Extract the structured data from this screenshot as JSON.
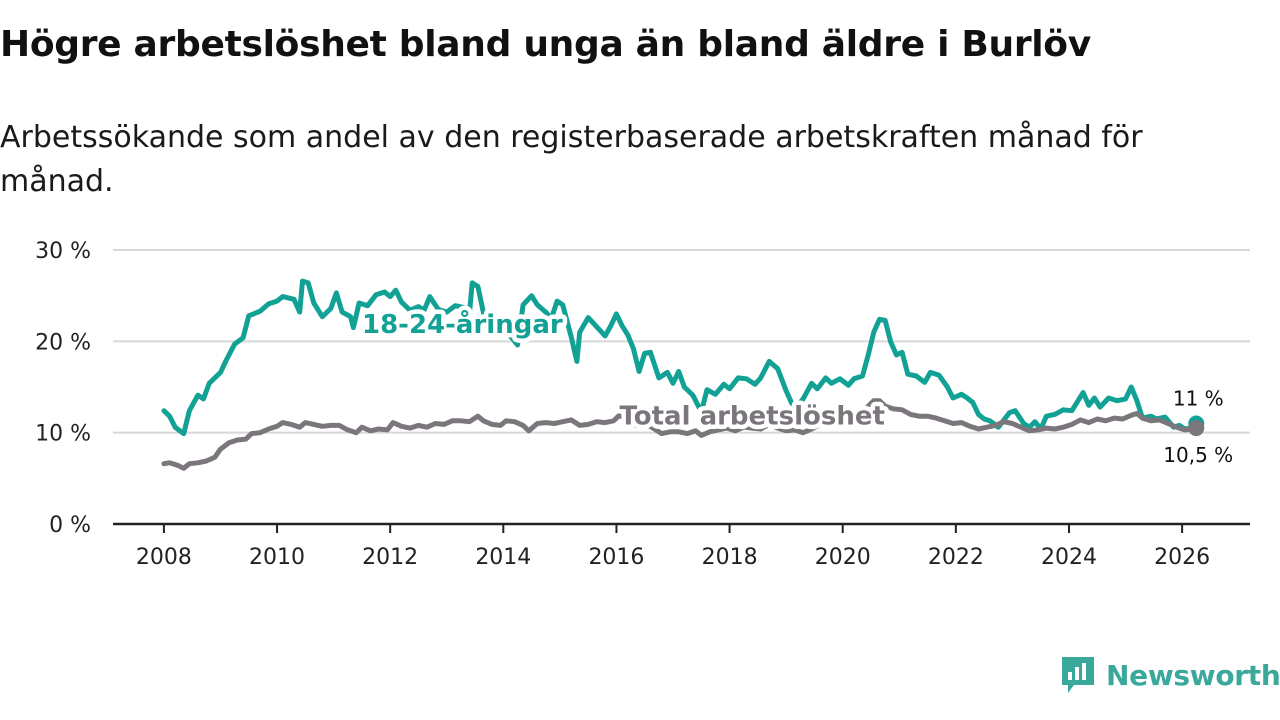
{
  "title": "Högre arbetslöshet bland unga än bland äldre i Burlöv",
  "subtitle": "Arbetssökande som andel av den registerbaserade arbetskraften månad för månad.",
  "brand": "Newsworthy",
  "colors": {
    "youth": "#12a195",
    "total": "#7a767c",
    "grid": "#d8d8d8",
    "axis": "#222222",
    "brand": "#3aa89b"
  },
  "chart_data": {
    "type": "line",
    "title": "Högre arbetslöshet bland unga än bland äldre i Burlöv",
    "xlabel": "",
    "ylabel": "",
    "xlim": [
      2007.1,
      2027.2
    ],
    "ylim": [
      0,
      30
    ],
    "x_ticks": [
      2008,
      2010,
      2012,
      2014,
      2016,
      2018,
      2020,
      2022,
      2024,
      2026
    ],
    "x_tick_labels": [
      "2008",
      "2010",
      "2012",
      "2014",
      "2016",
      "2018",
      "2020",
      "2022",
      "2024",
      "2026"
    ],
    "y_ticks": [
      0,
      10,
      20,
      30
    ],
    "y_tick_labels": [
      "0 %",
      "10 %",
      "20 %",
      "30 %"
    ],
    "grid": true,
    "series": [
      {
        "name": "18-24-åringar",
        "key": "youth",
        "points": [
          [
            2008.0,
            12.4
          ],
          [
            2008.1,
            11.8
          ],
          [
            2008.2,
            10.6
          ],
          [
            2008.35,
            9.9
          ],
          [
            2008.45,
            12.4
          ],
          [
            2008.6,
            14.1
          ],
          [
            2008.7,
            13.7
          ],
          [
            2008.8,
            15.4
          ],
          [
            2009.0,
            16.6
          ],
          [
            2009.1,
            17.9
          ],
          [
            2009.25,
            19.7
          ],
          [
            2009.4,
            20.4
          ],
          [
            2009.5,
            22.8
          ],
          [
            2009.7,
            23.3
          ],
          [
            2009.85,
            24.1
          ],
          [
            2010.0,
            24.4
          ],
          [
            2010.1,
            24.9
          ],
          [
            2010.3,
            24.6
          ],
          [
            2010.4,
            23.2
          ],
          [
            2010.45,
            26.6
          ],
          [
            2010.55,
            26.4
          ],
          [
            2010.65,
            24.2
          ],
          [
            2010.8,
            22.7
          ],
          [
            2010.95,
            23.6
          ],
          [
            2011.05,
            25.3
          ],
          [
            2011.15,
            23.2
          ],
          [
            2011.3,
            22.7
          ],
          [
            2011.35,
            21.5
          ],
          [
            2011.45,
            24.2
          ],
          [
            2011.6,
            23.9
          ],
          [
            2011.75,
            25.1
          ],
          [
            2011.9,
            25.4
          ],
          [
            2012.0,
            24.9
          ],
          [
            2012.1,
            25.6
          ],
          [
            2012.2,
            24.3
          ],
          [
            2012.35,
            23.4
          ],
          [
            2012.5,
            23.8
          ],
          [
            2012.6,
            23.4
          ],
          [
            2012.7,
            24.9
          ],
          [
            2012.85,
            23.5
          ],
          [
            2013.0,
            23.2
          ],
          [
            2013.15,
            23.9
          ],
          [
            2013.3,
            23.7
          ],
          [
            2013.4,
            23.0
          ],
          [
            2013.45,
            26.4
          ],
          [
            2013.55,
            26.0
          ],
          [
            2013.65,
            23.1
          ],
          [
            2013.75,
            22.0
          ],
          [
            2013.85,
            21.0
          ],
          [
            2014.0,
            21.3
          ],
          [
            2014.15,
            20.4
          ],
          [
            2014.25,
            19.6
          ],
          [
            2014.35,
            24.0
          ],
          [
            2014.5,
            25.0
          ],
          [
            2014.6,
            24.0
          ],
          [
            2014.75,
            23.2
          ],
          [
            2014.85,
            22.5
          ],
          [
            2014.95,
            24.4
          ],
          [
            2015.05,
            24.0
          ],
          [
            2015.2,
            20.5
          ],
          [
            2015.3,
            17.8
          ],
          [
            2015.35,
            21.0
          ],
          [
            2015.5,
            22.6
          ],
          [
            2015.65,
            21.6
          ],
          [
            2015.8,
            20.6
          ],
          [
            2015.9,
            21.7
          ],
          [
            2016.0,
            23.0
          ],
          [
            2016.1,
            21.7
          ],
          [
            2016.2,
            20.7
          ],
          [
            2016.3,
            19.2
          ],
          [
            2016.4,
            16.7
          ],
          [
            2016.5,
            18.7
          ],
          [
            2016.6,
            18.8
          ],
          [
            2016.75,
            16.0
          ],
          [
            2016.9,
            16.6
          ],
          [
            2017.0,
            15.4
          ],
          [
            2017.1,
            16.7
          ],
          [
            2017.2,
            15.0
          ],
          [
            2017.35,
            14.1
          ],
          [
            2017.5,
            12.3
          ],
          [
            2017.6,
            14.7
          ],
          [
            2017.75,
            14.2
          ],
          [
            2017.9,
            15.3
          ],
          [
            2018.0,
            14.8
          ],
          [
            2018.15,
            16.0
          ],
          [
            2018.3,
            15.9
          ],
          [
            2018.45,
            15.3
          ],
          [
            2018.55,
            16.0
          ],
          [
            2018.7,
            17.8
          ],
          [
            2018.85,
            17.0
          ],
          [
            2019.0,
            14.6
          ],
          [
            2019.1,
            13.2
          ],
          [
            2019.2,
            12.9
          ],
          [
            2019.3,
            13.7
          ],
          [
            2019.45,
            15.4
          ],
          [
            2019.55,
            14.8
          ],
          [
            2019.7,
            16.0
          ],
          [
            2019.8,
            15.4
          ],
          [
            2019.95,
            15.9
          ],
          [
            2020.1,
            15.2
          ],
          [
            2020.2,
            15.9
          ],
          [
            2020.35,
            16.2
          ],
          [
            2020.45,
            18.5
          ],
          [
            2020.55,
            21.0
          ],
          [
            2020.65,
            22.4
          ],
          [
            2020.75,
            22.3
          ],
          [
            2020.85,
            19.9
          ],
          [
            2020.95,
            18.5
          ],
          [
            2021.05,
            18.8
          ],
          [
            2021.15,
            16.4
          ],
          [
            2021.3,
            16.2
          ],
          [
            2021.45,
            15.5
          ],
          [
            2021.55,
            16.6
          ],
          [
            2021.7,
            16.3
          ],
          [
            2021.85,
            15.0
          ],
          [
            2021.95,
            13.8
          ],
          [
            2022.1,
            14.2
          ],
          [
            2022.2,
            13.8
          ],
          [
            2022.3,
            13.3
          ],
          [
            2022.4,
            12.0
          ],
          [
            2022.5,
            11.5
          ],
          [
            2022.6,
            11.3
          ],
          [
            2022.75,
            10.6
          ],
          [
            2022.85,
            11.4
          ],
          [
            2022.95,
            12.2
          ],
          [
            2023.05,
            12.4
          ],
          [
            2023.2,
            11.0
          ],
          [
            2023.3,
            10.6
          ],
          [
            2023.4,
            11.2
          ],
          [
            2023.5,
            10.4
          ],
          [
            2023.6,
            11.8
          ],
          [
            2023.75,
            12.0
          ],
          [
            2023.9,
            12.5
          ],
          [
            2024.05,
            12.4
          ],
          [
            2024.15,
            13.4
          ],
          [
            2024.25,
            14.4
          ],
          [
            2024.35,
            13.0
          ],
          [
            2024.45,
            13.8
          ],
          [
            2024.55,
            12.8
          ],
          [
            2024.7,
            13.8
          ],
          [
            2024.85,
            13.5
          ],
          [
            2025.0,
            13.7
          ],
          [
            2025.1,
            15.0
          ],
          [
            2025.2,
            13.5
          ],
          [
            2025.3,
            11.6
          ],
          [
            2025.45,
            11.8
          ],
          [
            2025.55,
            11.5
          ],
          [
            2025.7,
            11.7
          ],
          [
            2025.85,
            10.6
          ],
          [
            2025.95,
            10.8
          ],
          [
            2026.05,
            10.4
          ],
          [
            2026.15,
            10.5
          ],
          [
            2026.25,
            11.0
          ]
        ]
      },
      {
        "name": "Total arbetslöshet",
        "key": "total",
        "points": [
          [
            2008.0,
            6.6
          ],
          [
            2008.1,
            6.7
          ],
          [
            2008.25,
            6.4
          ],
          [
            2008.35,
            6.1
          ],
          [
            2008.45,
            6.6
          ],
          [
            2008.6,
            6.7
          ],
          [
            2008.75,
            6.9
          ],
          [
            2008.9,
            7.3
          ],
          [
            2009.0,
            8.2
          ],
          [
            2009.15,
            8.9
          ],
          [
            2009.3,
            9.2
          ],
          [
            2009.45,
            9.3
          ],
          [
            2009.55,
            9.9
          ],
          [
            2009.7,
            10.0
          ],
          [
            2009.85,
            10.4
          ],
          [
            2010.0,
            10.7
          ],
          [
            2010.1,
            11.1
          ],
          [
            2010.25,
            10.9
          ],
          [
            2010.4,
            10.6
          ],
          [
            2010.5,
            11.1
          ],
          [
            2010.65,
            10.9
          ],
          [
            2010.8,
            10.7
          ],
          [
            2010.95,
            10.8
          ],
          [
            2011.1,
            10.8
          ],
          [
            2011.25,
            10.3
          ],
          [
            2011.4,
            10.0
          ],
          [
            2011.5,
            10.6
          ],
          [
            2011.65,
            10.2
          ],
          [
            2011.8,
            10.4
          ],
          [
            2011.95,
            10.3
          ],
          [
            2012.05,
            11.1
          ],
          [
            2012.2,
            10.7
          ],
          [
            2012.35,
            10.5
          ],
          [
            2012.5,
            10.8
          ],
          [
            2012.65,
            10.6
          ],
          [
            2012.8,
            11.0
          ],
          [
            2012.95,
            10.9
          ],
          [
            2013.1,
            11.3
          ],
          [
            2013.25,
            11.3
          ],
          [
            2013.4,
            11.2
          ],
          [
            2013.55,
            11.8
          ],
          [
            2013.65,
            11.3
          ],
          [
            2013.8,
            10.9
          ],
          [
            2013.95,
            10.8
          ],
          [
            2014.05,
            11.3
          ],
          [
            2014.2,
            11.2
          ],
          [
            2014.35,
            10.8
          ],
          [
            2014.45,
            10.2
          ],
          [
            2014.6,
            11.0
          ],
          [
            2014.75,
            11.1
          ],
          [
            2014.9,
            11.0
          ],
          [
            2015.05,
            11.2
          ],
          [
            2015.2,
            11.4
          ],
          [
            2015.35,
            10.8
          ],
          [
            2015.5,
            10.9
          ],
          [
            2015.65,
            11.2
          ],
          [
            2015.8,
            11.1
          ],
          [
            2015.95,
            11.3
          ],
          [
            2016.05,
            11.9
          ],
          [
            2016.2,
            11.4
          ],
          [
            2016.35,
            10.8
          ],
          [
            2016.5,
            11.0
          ],
          [
            2016.65,
            10.5
          ],
          [
            2016.8,
            9.9
          ],
          [
            2016.95,
            10.1
          ],
          [
            2017.1,
            10.1
          ],
          [
            2017.25,
            9.9
          ],
          [
            2017.4,
            10.2
          ],
          [
            2017.5,
            9.7
          ],
          [
            2017.65,
            10.1
          ],
          [
            2017.8,
            10.3
          ],
          [
            2017.95,
            10.5
          ],
          [
            2018.1,
            10.2
          ],
          [
            2018.25,
            10.6
          ],
          [
            2018.4,
            10.5
          ],
          [
            2018.55,
            10.4
          ],
          [
            2018.7,
            10.9
          ],
          [
            2018.85,
            10.5
          ],
          [
            2019.0,
            10.2
          ],
          [
            2019.15,
            10.3
          ],
          [
            2019.3,
            10.0
          ],
          [
            2019.45,
            10.4
          ],
          [
            2019.6,
            10.9
          ],
          [
            2019.75,
            11.2
          ],
          [
            2019.9,
            11.0
          ],
          [
            2020.05,
            11.5
          ],
          [
            2020.2,
            11.3
          ],
          [
            2020.35,
            12.0
          ],
          [
            2020.45,
            12.9
          ],
          [
            2020.55,
            13.5
          ],
          [
            2020.65,
            13.5
          ],
          [
            2020.75,
            12.9
          ],
          [
            2020.9,
            12.6
          ],
          [
            2021.05,
            12.5
          ],
          [
            2021.2,
            12.0
          ],
          [
            2021.35,
            11.8
          ],
          [
            2021.5,
            11.8
          ],
          [
            2021.65,
            11.6
          ],
          [
            2021.8,
            11.3
          ],
          [
            2021.95,
            11.0
          ],
          [
            2022.1,
            11.1
          ],
          [
            2022.25,
            10.7
          ],
          [
            2022.4,
            10.4
          ],
          [
            2022.55,
            10.6
          ],
          [
            2022.7,
            10.8
          ],
          [
            2022.85,
            11.2
          ],
          [
            2023.0,
            11.0
          ],
          [
            2023.15,
            10.6
          ],
          [
            2023.3,
            10.2
          ],
          [
            2023.45,
            10.3
          ],
          [
            2023.6,
            10.5
          ],
          [
            2023.75,
            10.4
          ],
          [
            2023.9,
            10.6
          ],
          [
            2024.05,
            10.9
          ],
          [
            2024.2,
            11.4
          ],
          [
            2024.35,
            11.1
          ],
          [
            2024.5,
            11.5
          ],
          [
            2024.65,
            11.3
          ],
          [
            2024.8,
            11.6
          ],
          [
            2024.95,
            11.5
          ],
          [
            2025.1,
            11.9
          ],
          [
            2025.2,
            12.1
          ],
          [
            2025.3,
            11.6
          ],
          [
            2025.45,
            11.3
          ],
          [
            2025.6,
            11.4
          ],
          [
            2025.75,
            11.0
          ],
          [
            2025.9,
            10.6
          ],
          [
            2026.05,
            10.3
          ],
          [
            2026.15,
            10.4
          ],
          [
            2026.25,
            10.5
          ]
        ]
      }
    ],
    "series_labels": [
      {
        "text": "18-24-åringar",
        "series": "youth",
        "x": 2015.05,
        "y": 20.9,
        "anchor": "end"
      },
      {
        "text": "Total arbetslöshet",
        "series": "total",
        "x": 2018.4,
        "y": 10.9,
        "anchor": "middle"
      }
    ],
    "end_labels": [
      {
        "text": "11 %",
        "series": "youth",
        "x": 2026.25,
        "y": 11.0,
        "placement": "above"
      },
      {
        "text": "10,5 %",
        "series": "total",
        "x": 2026.25,
        "y": 10.5,
        "placement": "below"
      }
    ]
  }
}
